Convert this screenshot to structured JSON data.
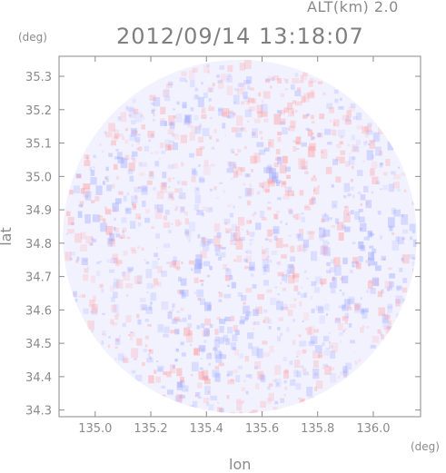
{
  "header": {
    "altitude": "ALT(km) 2.0",
    "timestamp": "2012/09/14 13:18:07"
  },
  "chart_data": {
    "type": "heatmap",
    "description_units": {
      "x": "(deg)",
      "y": "(deg)"
    },
    "xlabel": "lon",
    "ylabel": "lat",
    "x_unit": "(deg)",
    "y_unit": "(deg)",
    "xlim": [
      134.87,
      136.17
    ],
    "ylim": [
      34.28,
      35.36
    ],
    "x_ticks": [
      135.0,
      135.2,
      135.4,
      135.6,
      135.8,
      136.0
    ],
    "x_tick_labels": [
      "135.0",
      "135.2",
      "135.4",
      "135.6",
      "135.8",
      "136.0"
    ],
    "y_ticks": [
      34.3,
      34.4,
      34.5,
      34.6,
      34.7,
      34.8,
      34.9,
      35.0,
      35.1,
      35.2,
      35.3
    ],
    "y_tick_labels": [
      "34.3",
      "34.4",
      "34.5",
      "34.6",
      "34.7",
      "34.8",
      "34.9",
      "35.0",
      "35.1",
      "35.2",
      "35.3"
    ],
    "radar_center": {
      "lon": 135.52,
      "lat": 34.82
    },
    "radar_radius_deg_lat": 0.53,
    "field": {
      "background_color": "#f2f2ff",
      "positive_color": "#ff9a9a",
      "negative_color": "#9aa6ff",
      "notes_regions": [
        {
          "lon": 135.7,
          "lat": 35.1,
          "sign": "positive"
        },
        {
          "lon": 135.95,
          "lat": 34.8,
          "sign": "negative"
        },
        {
          "lon": 135.4,
          "lat": 34.65,
          "sign": "negative"
        },
        {
          "lon": 135.0,
          "lat": 34.95,
          "sign": "mixed"
        },
        {
          "lon": 135.3,
          "lat": 34.45,
          "sign": "mixed"
        }
      ]
    },
    "grid": false
  },
  "colors": {
    "axis": "#8a8a8a",
    "text": "#8a8a8a"
  }
}
